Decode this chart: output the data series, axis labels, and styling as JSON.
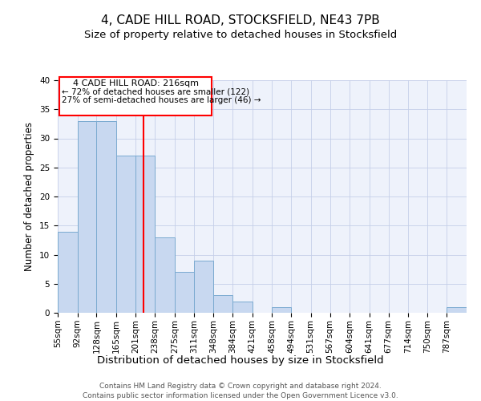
{
  "title": "4, CADE HILL ROAD, STOCKSFIELD, NE43 7PB",
  "subtitle": "Size of property relative to detached houses in Stocksfield",
  "xlabel": "Distribution of detached houses by size in Stocksfield",
  "ylabel": "Number of detached properties",
  "bin_edges": [
    55,
    92,
    128,
    165,
    201,
    238,
    275,
    311,
    348,
    384,
    421,
    458,
    494,
    531,
    567,
    604,
    641,
    677,
    714,
    750,
    787,
    824
  ],
  "bar_heights": [
    14,
    33,
    33,
    27,
    27,
    13,
    7,
    9,
    3,
    2,
    0,
    1,
    0,
    0,
    0,
    0,
    0,
    0,
    0,
    0,
    1
  ],
  "bar_color": "#c8d8f0",
  "bar_edge_color": "#7aaad0",
  "vline_x": 216,
  "vline_color": "red",
  "annotation_line1": "4 CADE HILL ROAD: 216sqm",
  "annotation_line2": "← 72% of detached houses are smaller (122)",
  "annotation_line3": "27% of semi-detached houses are larger (46) →",
  "ylim": [
    0,
    40
  ],
  "yticks": [
    0,
    5,
    10,
    15,
    20,
    25,
    30,
    35,
    40
  ],
  "footer_line1": "Contains HM Land Registry data © Crown copyright and database right 2024.",
  "footer_line2": "Contains public sector information licensed under the Open Government Licence v3.0.",
  "bg_color": "#eef2fb",
  "grid_color": "#c5cfe8",
  "title_fontsize": 11,
  "subtitle_fontsize": 9.5,
  "ylabel_fontsize": 8.5,
  "xlabel_fontsize": 9.5,
  "tick_fontsize": 7.5,
  "footer_fontsize": 6.5
}
